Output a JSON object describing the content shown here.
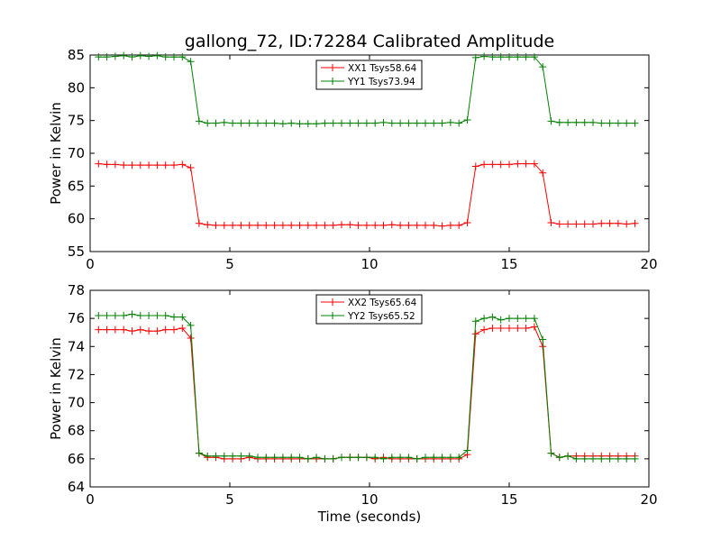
{
  "figure": {
    "title": "gallong_72, ID:72284 Calibrated Amplitude",
    "xlabel": "Time (seconds)"
  },
  "chart_data": [
    {
      "type": "line",
      "title": "gallong_72, ID:72284 Calibrated Amplitude",
      "xlabel": "",
      "ylabel": "Power in Kelvin",
      "xlim": [
        0,
        20
      ],
      "ylim": [
        55,
        85
      ],
      "xticks": [
        "0",
        "5",
        "10",
        "15",
        "20"
      ],
      "yticks": [
        "55",
        "60",
        "65",
        "70",
        "75",
        "80",
        "85"
      ],
      "grid": false,
      "legend_position": "top-center",
      "x": [
        0.3,
        0.6,
        0.9,
        1.2,
        1.5,
        1.8,
        2.1,
        2.4,
        2.7,
        3.0,
        3.3,
        3.6,
        3.9,
        4.2,
        4.5,
        4.8,
        5.1,
        5.4,
        5.7,
        6.0,
        6.3,
        6.6,
        6.9,
        7.2,
        7.5,
        7.8,
        8.1,
        8.4,
        8.7,
        9.0,
        9.3,
        9.6,
        9.9,
        10.2,
        10.5,
        10.8,
        11.1,
        11.4,
        11.7,
        12.0,
        12.3,
        12.6,
        12.9,
        13.2,
        13.5,
        13.8,
        14.1,
        14.4,
        14.7,
        15.0,
        15.3,
        15.6,
        15.9,
        16.2,
        16.5,
        16.8,
        17.1,
        17.4,
        17.7,
        18.0,
        18.3,
        18.6,
        18.9,
        19.2,
        19.5
      ],
      "series": [
        {
          "name": "XX1 Tsys58.64",
          "color": "#ff0000",
          "values": [
            68.4,
            68.3,
            68.3,
            68.2,
            68.2,
            68.2,
            68.2,
            68.2,
            68.2,
            68.2,
            68.3,
            67.8,
            59.3,
            59.1,
            59.0,
            59.0,
            59.0,
            59.0,
            59.0,
            59.0,
            59.0,
            59.0,
            59.0,
            59.0,
            59.0,
            59.0,
            59.0,
            59.0,
            59.0,
            59.1,
            59.1,
            59.0,
            59.0,
            59.0,
            59.0,
            59.1,
            59.0,
            59.0,
            59.0,
            59.0,
            59.0,
            58.9,
            59.0,
            59.0,
            59.4,
            68.0,
            68.3,
            68.3,
            68.3,
            68.3,
            68.4,
            68.4,
            68.4,
            67.0,
            59.4,
            59.2,
            59.2,
            59.2,
            59.2,
            59.2,
            59.3,
            59.3,
            59.3,
            59.2,
            59.3
          ]
        },
        {
          "name": "YY1 Tsys73.94",
          "color": "#008000",
          "values": [
            84.7,
            84.7,
            84.8,
            84.9,
            84.7,
            84.9,
            84.8,
            84.9,
            84.7,
            84.7,
            84.7,
            84.0,
            74.9,
            74.6,
            74.6,
            74.7,
            74.6,
            74.6,
            74.6,
            74.6,
            74.6,
            74.6,
            74.5,
            74.6,
            74.5,
            74.5,
            74.5,
            74.6,
            74.6,
            74.6,
            74.6,
            74.6,
            74.6,
            74.6,
            74.7,
            74.6,
            74.6,
            74.6,
            74.6,
            74.6,
            74.6,
            74.6,
            74.7,
            74.6,
            75.1,
            84.6,
            84.8,
            84.7,
            84.7,
            84.7,
            84.7,
            84.7,
            84.7,
            83.2,
            74.9,
            74.7,
            74.7,
            74.7,
            74.7,
            74.7,
            74.6,
            74.6,
            74.6,
            74.6,
            74.6
          ]
        }
      ]
    },
    {
      "type": "line",
      "title": "",
      "xlabel": "Time (seconds)",
      "ylabel": "Power in Kelvin",
      "xlim": [
        0,
        20
      ],
      "ylim": [
        64,
        78
      ],
      "xticks": [
        "0",
        "5",
        "10",
        "15",
        "20"
      ],
      "yticks": [
        "64",
        "66",
        "68",
        "70",
        "72",
        "74",
        "76",
        "78"
      ],
      "grid": false,
      "legend_position": "top-center",
      "x": [
        0.3,
        0.6,
        0.9,
        1.2,
        1.5,
        1.8,
        2.1,
        2.4,
        2.7,
        3.0,
        3.3,
        3.6,
        3.9,
        4.2,
        4.5,
        4.8,
        5.1,
        5.4,
        5.7,
        6.0,
        6.3,
        6.6,
        6.9,
        7.2,
        7.5,
        7.8,
        8.1,
        8.4,
        8.7,
        9.0,
        9.3,
        9.6,
        9.9,
        10.2,
        10.5,
        10.8,
        11.1,
        11.4,
        11.7,
        12.0,
        12.3,
        12.6,
        12.9,
        13.2,
        13.5,
        13.8,
        14.1,
        14.4,
        14.7,
        15.0,
        15.3,
        15.6,
        15.9,
        16.2,
        16.5,
        16.8,
        17.1,
        17.4,
        17.7,
        18.0,
        18.3,
        18.6,
        18.9,
        19.2,
        19.5
      ],
      "series": [
        {
          "name": "XX2 Tsys65.64",
          "color": "#ff0000",
          "values": [
            75.2,
            75.2,
            75.2,
            75.2,
            75.1,
            75.2,
            75.1,
            75.1,
            75.2,
            75.2,
            75.3,
            74.6,
            66.4,
            66.1,
            66.1,
            66.0,
            66.0,
            66.0,
            66.1,
            66.0,
            66.0,
            66.0,
            66.0,
            66.0,
            66.0,
            66.0,
            66.0,
            66.0,
            66.0,
            66.1,
            66.1,
            66.1,
            66.1,
            66.0,
            66.1,
            66.0,
            66.0,
            66.0,
            66.0,
            66.0,
            66.0,
            66.0,
            66.0,
            66.0,
            66.3,
            74.9,
            75.2,
            75.3,
            75.3,
            75.3,
            75.3,
            75.3,
            75.4,
            74.0,
            66.4,
            66.1,
            66.2,
            66.2,
            66.2,
            66.2,
            66.2,
            66.2,
            66.2,
            66.2,
            66.2
          ]
        },
        {
          "name": "YY2 Tsys65.52",
          "color": "#008000",
          "values": [
            76.2,
            76.2,
            76.2,
            76.2,
            76.3,
            76.2,
            76.2,
            76.2,
            76.2,
            76.1,
            76.1,
            75.5,
            66.4,
            66.2,
            66.2,
            66.2,
            66.2,
            66.2,
            66.2,
            66.1,
            66.1,
            66.1,
            66.1,
            66.1,
            66.1,
            66.0,
            66.1,
            66.0,
            66.0,
            66.1,
            66.1,
            66.1,
            66.1,
            66.1,
            66.0,
            66.1,
            66.1,
            66.1,
            66.0,
            66.1,
            66.1,
            66.1,
            66.1,
            66.1,
            66.6,
            75.8,
            76.0,
            76.1,
            75.9,
            76.0,
            76.0,
            76.0,
            76.0,
            74.5,
            66.4,
            66.1,
            66.2,
            66.0,
            66.0,
            66.0,
            66.0,
            66.0,
            66.0,
            66.0,
            66.0
          ]
        }
      ]
    }
  ]
}
